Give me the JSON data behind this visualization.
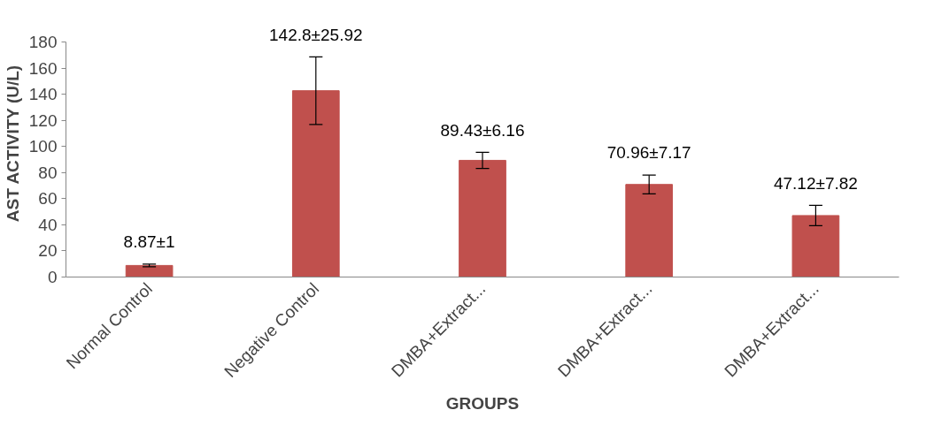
{
  "chart_data": {
    "type": "bar",
    "xlabel": "GROUPS",
    "ylabel": "AST ACTIVITY (U/L)",
    "categories": [
      "Normal Control",
      "Negative Control",
      "DMBA+Extract...",
      "DMBA+Extract...",
      "DMBA+Extract..."
    ],
    "values": [
      8.87,
      142.8,
      89.43,
      70.96,
      47.12
    ],
    "errors": [
      1,
      25.92,
      6.16,
      7.17,
      7.82
    ],
    "value_labels": [
      "8.87±1",
      "142.8±25.92",
      "89.43±6.16",
      "70.96±7.17",
      "47.12±7.82"
    ],
    "color": "#c0504d",
    "ylim": [
      0,
      180
    ],
    "yticks": [
      0,
      20,
      40,
      60,
      80,
      100,
      120,
      140,
      160,
      180
    ],
    "grid": false
  }
}
